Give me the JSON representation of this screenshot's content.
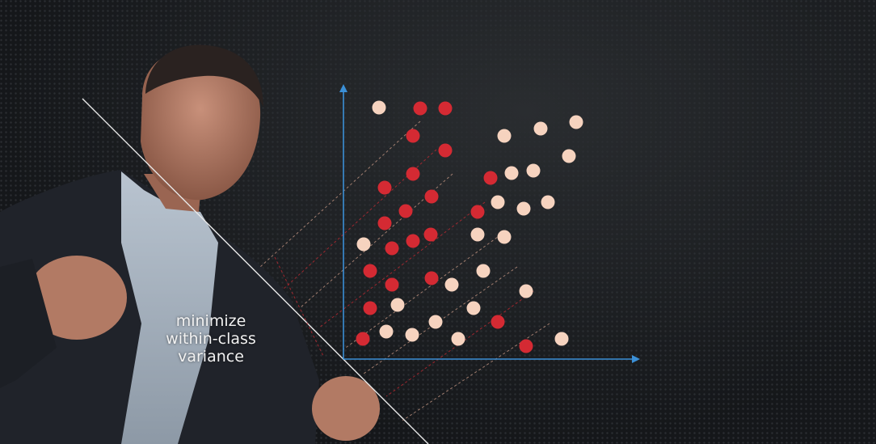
{
  "colors": {
    "class_a": "#d42a33",
    "class_b": "#f6d3bf",
    "axis": "#3b8fd6"
  },
  "caption": {
    "lines": [
      "minimize",
      "within-class",
      "variance"
    ]
  },
  "scatter": {
    "class_a": [
      [
        520,
        134
      ],
      [
        551,
        134
      ],
      [
        511,
        168
      ],
      [
        551,
        186
      ],
      [
        511,
        215
      ],
      [
        607,
        220
      ],
      [
        476,
        232
      ],
      [
        534,
        243
      ],
      [
        502,
        261
      ],
      [
        591,
        262
      ],
      [
        476,
        276
      ],
      [
        533,
        290
      ],
      [
        511,
        298
      ],
      [
        485,
        307
      ],
      [
        458,
        335
      ],
      [
        534,
        344
      ],
      [
        485,
        352
      ],
      [
        458,
        381
      ],
      [
        616,
        398
      ],
      [
        449,
        419
      ],
      [
        651,
        428
      ]
    ],
    "class_b": [
      [
        469,
        133
      ],
      [
        713,
        151
      ],
      [
        669,
        159
      ],
      [
        624,
        168
      ],
      [
        704,
        193
      ],
      [
        660,
        211
      ],
      [
        633,
        214
      ],
      [
        616,
        250
      ],
      [
        678,
        250
      ],
      [
        648,
        258
      ],
      [
        591,
        290
      ],
      [
        624,
        293
      ],
      [
        450,
        302
      ],
      [
        598,
        335
      ],
      [
        559,
        352
      ],
      [
        651,
        360
      ],
      [
        492,
        377
      ],
      [
        586,
        381
      ],
      [
        539,
        398
      ],
      [
        478,
        410
      ],
      [
        510,
        414
      ],
      [
        567,
        419
      ],
      [
        695,
        419
      ]
    ]
  }
}
